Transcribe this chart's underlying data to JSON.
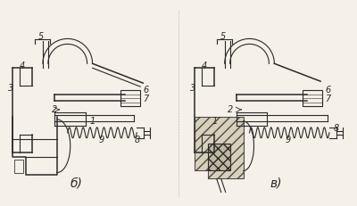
{
  "background_color": "#f5f0e8",
  "fig_width": 4.0,
  "fig_height": 2.32,
  "dpi": 100,
  "left_label": "б)",
  "right_label": "в)",
  "line_color": "#2a2a2a",
  "number_fontsize": 7,
  "label_fontsize": 10,
  "img_array": null
}
